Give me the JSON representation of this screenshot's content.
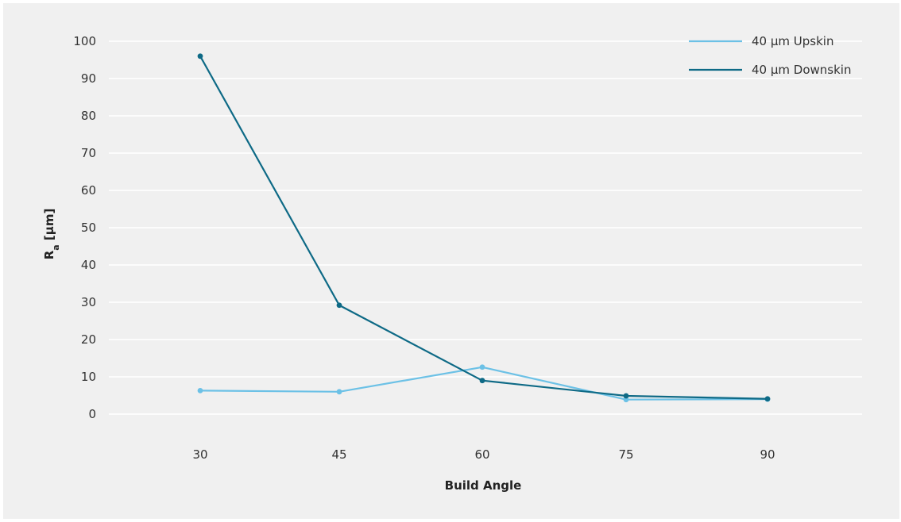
{
  "chart_data": {
    "type": "line",
    "xlabel": "Build Angle",
    "ylabel": "R",
    "ylabel_sub": "a",
    "ylabel_suffix": " [µm]",
    "x": [
      30,
      45,
      60,
      75,
      90
    ],
    "x_tick_labels": [
      "30",
      "45",
      "60",
      "75",
      "90"
    ],
    "ylim": [
      0,
      100
    ],
    "y_ticks": [
      0,
      10,
      20,
      30,
      40,
      50,
      60,
      70,
      80,
      90,
      100
    ],
    "grid": true,
    "legend_position": "top-right",
    "series": [
      {
        "name": "40 µm Upskin",
        "color": "#6cc1e6",
        "values": [
          6.3,
          6.0,
          12.6,
          3.9,
          4.0
        ]
      },
      {
        "name": "40 µm Downskin",
        "color": "#0e6a86",
        "values": [
          96,
          29.2,
          9.0,
          4.9,
          4.1
        ]
      }
    ]
  }
}
